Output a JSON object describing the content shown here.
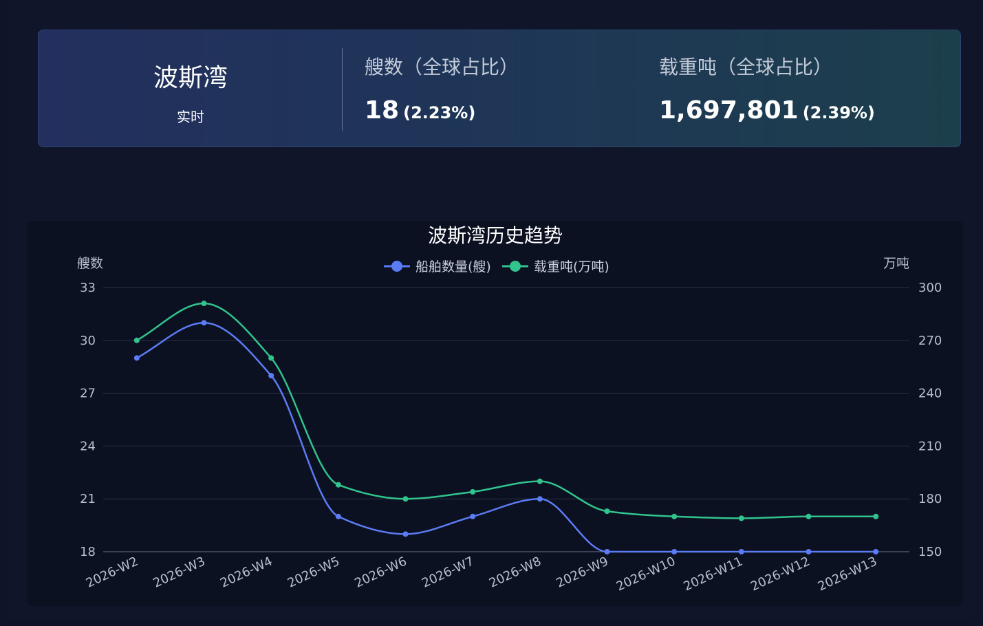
{
  "summary": {
    "region_name": "波斯湾",
    "region_sub": "实时",
    "ships": {
      "label": "艘数（全球占比）",
      "value": "18",
      "share": "(2.23%)"
    },
    "dwt": {
      "label": "载重吨（全球占比）",
      "value": "1,697,801",
      "share": "(2.39%)"
    }
  },
  "colors": {
    "ships_series": "#5b7cf5",
    "dwt_series": "#31c48d",
    "grid": "#2a3146"
  },
  "chart_data": {
    "type": "line",
    "title": "波斯湾历史趋势",
    "categories": [
      "2026-W2",
      "2026-W3",
      "2026-W4",
      "2026-W5",
      "2026-W6",
      "2026-W7",
      "2026-W8",
      "2026-W9",
      "2026-W10",
      "2026-W11",
      "2026-W12",
      "2026-W13"
    ],
    "y_left": {
      "name": "艘数",
      "min": 18,
      "max": 33,
      "ticks": [
        18,
        21,
        24,
        27,
        30,
        33
      ]
    },
    "y_right": {
      "name": "万吨",
      "min": 150,
      "max": 300,
      "ticks": [
        150,
        180,
        210,
        240,
        270,
        300
      ]
    },
    "legend_position": "top-center",
    "grid": true,
    "smooth": true,
    "series": [
      {
        "name": "船舶数量(艘)",
        "axis": "left",
        "color": "#5b7cf5",
        "values": [
          29,
          31,
          28,
          20,
          19,
          20,
          21,
          18,
          18,
          18,
          18,
          18
        ]
      },
      {
        "name": "载重吨(万吨)",
        "axis": "right",
        "color": "#31c48d",
        "values": [
          270,
          291,
          260,
          188,
          180,
          184,
          190,
          173,
          170,
          169,
          170,
          170
        ]
      }
    ]
  }
}
